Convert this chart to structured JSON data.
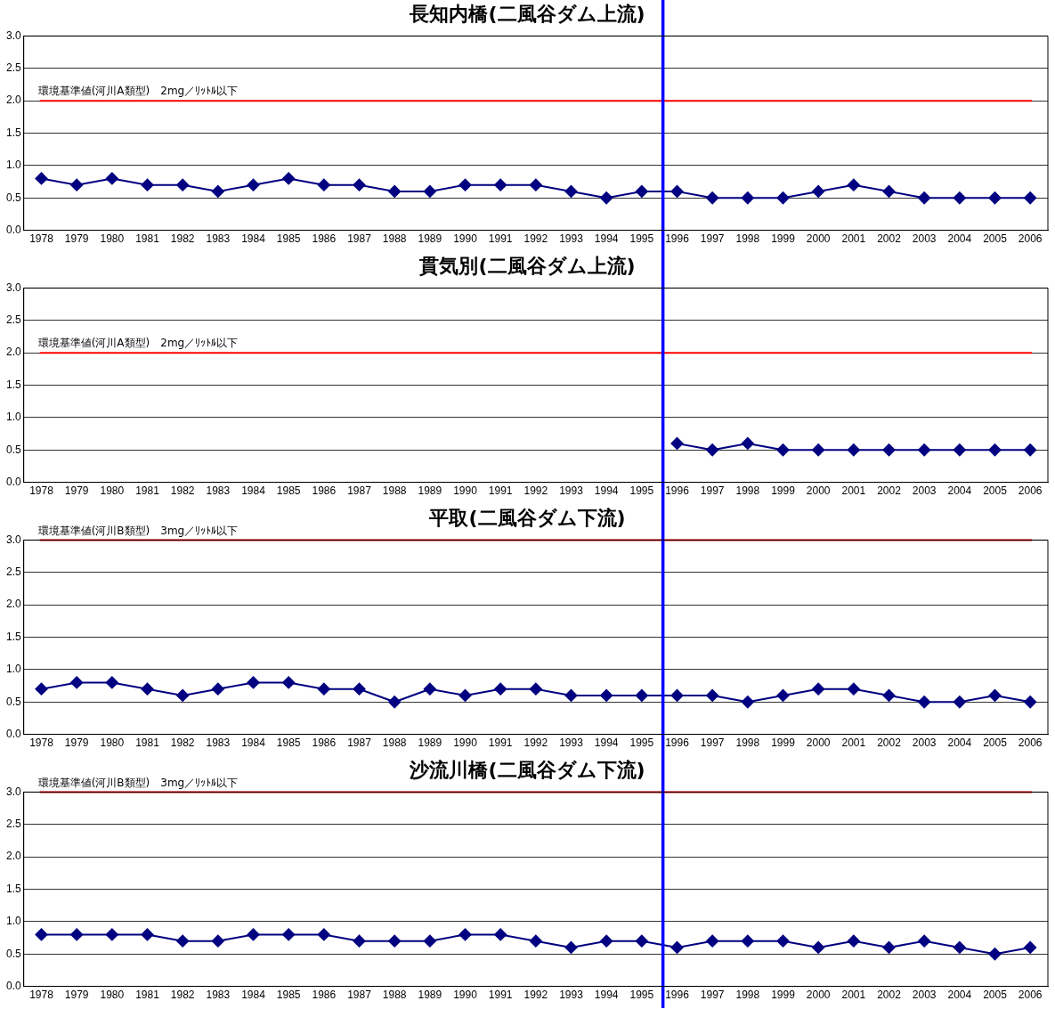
{
  "chart_data": [
    {
      "type": "line",
      "title": "長知内橋(二風谷ダム上流)",
      "x": [
        1978,
        1979,
        1980,
        1981,
        1982,
        1983,
        1984,
        1985,
        1986,
        1987,
        1988,
        1989,
        1990,
        1991,
        1992,
        1993,
        1994,
        1995,
        1996,
        1997,
        1998,
        1999,
        2000,
        2001,
        2002,
        2003,
        2004,
        2005,
        2006
      ],
      "series": [
        {
          "color": "#000080",
          "values": [
            0.8,
            0.7,
            0.8,
            0.7,
            0.7,
            0.6,
            0.7,
            0.8,
            0.7,
            0.7,
            0.6,
            0.6,
            0.7,
            0.7,
            0.7,
            0.6,
            0.5,
            0.6,
            0.6,
            0.5,
            0.5,
            0.5,
            0.6,
            0.7,
            0.6,
            0.5,
            0.5,
            0.5,
            0.5
          ]
        }
      ],
      "xlim": [
        1977.5,
        2006.5
      ],
      "xticks": [
        1978,
        1979,
        1980,
        1981,
        1982,
        1983,
        1984,
        1985,
        1986,
        1987,
        1988,
        1989,
        1990,
        1991,
        1992,
        1993,
        1994,
        1995,
        1996,
        1997,
        1998,
        1999,
        2000,
        2001,
        2002,
        2003,
        2004,
        2005,
        2006
      ],
      "ylim": [
        0,
        3
      ],
      "yticks": [
        {
          "value": 0,
          "label": "0.0"
        },
        {
          "value": 0.5,
          "label": "0.5"
        },
        {
          "value": 1,
          "label": "1.0"
        },
        {
          "value": 1.5,
          "label": "1.5"
        },
        {
          "value": 2,
          "label": "2.0"
        },
        {
          "value": 2.5,
          "label": "2.5"
        },
        {
          "value": 3,
          "label": "3.0"
        }
      ],
      "ref_lines": [
        {
          "axis": "y",
          "value": 2,
          "label": "環境基準値(河川A類型)　2mg／ﾘｯﾄﾙ以下",
          "color": "#ff0000"
        },
        {
          "axis": "x",
          "value": 1995.6,
          "color": "#0000ff"
        }
      ],
      "grid": "y",
      "legend": false,
      "marker": "diamond",
      "line_style": "solid"
    },
    {
      "type": "line",
      "title": "貫気別(二風谷ダム上流)",
      "series": [
        {
          "color": "#000080",
          "x": [
            1996,
            1997,
            1998,
            1999,
            2000,
            2001,
            2002,
            2003,
            2004,
            2005,
            2006
          ],
          "values": [
            0.6,
            0.5,
            0.6,
            0.5,
            0.5,
            0.5,
            0.5,
            0.5,
            0.5,
            0.5,
            0.5
          ]
        }
      ],
      "xlim": [
        1977.5,
        2006.5
      ],
      "xticks": [
        1978,
        1979,
        1980,
        1981,
        1982,
        1983,
        1984,
        1985,
        1986,
        1987,
        1988,
        1989,
        1990,
        1991,
        1992,
        1993,
        1994,
        1995,
        1996,
        1997,
        1998,
        1999,
        2000,
        2001,
        2002,
        2003,
        2004,
        2005,
        2006
      ],
      "ylim": [
        0,
        3
      ],
      "yticks": [
        {
          "value": 0,
          "label": "0.0"
        },
        {
          "value": 0.5,
          "label": "0.5"
        },
        {
          "value": 1,
          "label": "1.0"
        },
        {
          "value": 1.5,
          "label": "1.5"
        },
        {
          "value": 2,
          "label": "2.0"
        },
        {
          "value": 2.5,
          "label": "2.5"
        },
        {
          "value": 3,
          "label": "3.0"
        }
      ],
      "ref_lines": [
        {
          "axis": "y",
          "value": 2,
          "label": "環境基準値(河川A類型)　2mg／ﾘｯﾄﾙ以下",
          "color": "#ff0000"
        },
        {
          "axis": "x",
          "value": 1995.6,
          "color": "#0000ff"
        }
      ],
      "grid": "y",
      "legend": false,
      "marker": "diamond",
      "line_style": "solid"
    },
    {
      "type": "line",
      "title": "平取(二風谷ダム下流)",
      "x": [
        1978,
        1979,
        1980,
        1981,
        1982,
        1983,
        1984,
        1985,
        1986,
        1987,
        1988,
        1989,
        1990,
        1991,
        1992,
        1993,
        1994,
        1995,
        1996,
        1997,
        1998,
        1999,
        2000,
        2001,
        2002,
        2003,
        2004,
        2005,
        2006
      ],
      "series": [
        {
          "color": "#000080",
          "values": [
            0.7,
            0.8,
            0.8,
            0.7,
            0.6,
            0.7,
            0.8,
            0.8,
            0.7,
            0.7,
            0.5,
            0.7,
            0.6,
            0.7,
            0.7,
            0.6,
            0.6,
            0.6,
            0.6,
            0.6,
            0.5,
            0.6,
            0.7,
            0.7,
            0.6,
            0.5,
            0.5,
            0.6,
            0.5
          ]
        }
      ],
      "xlim": [
        1977.5,
        2006.5
      ],
      "xticks": [
        1978,
        1979,
        1980,
        1981,
        1982,
        1983,
        1984,
        1985,
        1986,
        1987,
        1988,
        1989,
        1990,
        1991,
        1992,
        1993,
        1994,
        1995,
        1996,
        1997,
        1998,
        1999,
        2000,
        2001,
        2002,
        2003,
        2004,
        2005,
        2006
      ],
      "ylim": [
        0,
        3
      ],
      "yticks": [
        {
          "value": 0,
          "label": "0.0"
        },
        {
          "value": 0.5,
          "label": "0.5"
        },
        {
          "value": 1,
          "label": "1.0"
        },
        {
          "value": 1.5,
          "label": "1.5"
        },
        {
          "value": 2,
          "label": "2.0"
        },
        {
          "value": 2.5,
          "label": "2.5"
        },
        {
          "value": 3,
          "label": "3.0"
        }
      ],
      "ref_lines": [
        {
          "axis": "y",
          "value": 3,
          "label": "環境基準値(河川B類型)　3mg／ﾘｯﾄﾙ以下",
          "color": "#ff0000"
        },
        {
          "axis": "x",
          "value": 1995.6,
          "color": "#0000ff"
        }
      ],
      "grid": "y",
      "legend": false,
      "marker": "diamond",
      "line_style": "solid"
    },
    {
      "type": "line",
      "title": "沙流川橋(二風谷ダム下流)",
      "x": [
        1978,
        1979,
        1980,
        1981,
        1982,
        1983,
        1984,
        1985,
        1986,
        1987,
        1988,
        1989,
        1990,
        1991,
        1992,
        1993,
        1994,
        1995,
        1996,
        1997,
        1998,
        1999,
        2000,
        2001,
        2002,
        2003,
        2004,
        2005,
        2006
      ],
      "series": [
        {
          "color": "#000080",
          "values": [
            0.8,
            0.8,
            0.8,
            0.8,
            0.7,
            0.7,
            0.8,
            0.8,
            0.8,
            0.7,
            0.7,
            0.7,
            0.8,
            0.8,
            0.7,
            0.6,
            0.7,
            0.7,
            0.6,
            0.7,
            0.7,
            0.7,
            0.6,
            0.7,
            0.6,
            0.7,
            0.6,
            0.5,
            0.6
          ]
        }
      ],
      "xlim": [
        1977.5,
        2006.5
      ],
      "xticks": [
        1978,
        1979,
        1980,
        1981,
        1982,
        1983,
        1984,
        1985,
        1986,
        1987,
        1988,
        1989,
        1990,
        1991,
        1992,
        1993,
        1994,
        1995,
        1996,
        1997,
        1998,
        1999,
        2000,
        2001,
        2002,
        2003,
        2004,
        2005,
        2006
      ],
      "ylim": [
        0,
        3
      ],
      "yticks": [
        {
          "value": 0,
          "label": "0.0"
        },
        {
          "value": 0.5,
          "label": "0.5"
        },
        {
          "value": 1,
          "label": "1.0"
        },
        {
          "value": 1.5,
          "label": "1.5"
        },
        {
          "value": 2,
          "label": "2.0"
        },
        {
          "value": 2.5,
          "label": "2.5"
        },
        {
          "value": 3,
          "label": "3.0"
        }
      ],
      "ref_lines": [
        {
          "axis": "y",
          "value": 3,
          "label": "環境基準値(河川B類型)　3mg／ﾘｯﾄﾙ以下",
          "color": "#ff0000"
        },
        {
          "axis": "x",
          "value": 1995.6,
          "color": "#0000ff"
        }
      ],
      "grid": "y",
      "legend": false,
      "marker": "diamond",
      "line_style": "solid"
    }
  ]
}
